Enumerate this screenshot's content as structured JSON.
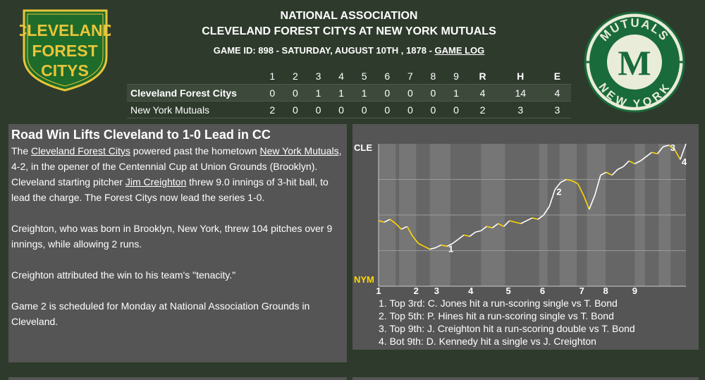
{
  "header": {
    "league": "NATIONAL ASSOCIATION",
    "matchup": "CLEVELAND FOREST CITYS AT NEW YORK MUTUALS",
    "game_info": "GAME ID: 898 - SATURDAY, AUGUST 10TH , 1878 - ",
    "game_log_link": "GAME LOG"
  },
  "logos": {
    "left": {
      "lines": [
        "CLEVELAND",
        "FOREST",
        "CITYS"
      ],
      "bg": "#1f6b2a",
      "accent": "#e8c53a"
    },
    "right": {
      "top_text": "MUTUALS",
      "bottom_text": "NEW YORK",
      "letter": "M",
      "bg": "#e9ecd9",
      "accent": "#1a6b3b"
    }
  },
  "linescore": {
    "innings": [
      "1",
      "2",
      "3",
      "4",
      "5",
      "6",
      "7",
      "8",
      "9"
    ],
    "totals_headers": [
      "R",
      "H",
      "E"
    ],
    "teams": [
      {
        "name": "Cleveland Forest Citys",
        "innings": [
          "0",
          "0",
          "1",
          "1",
          "1",
          "0",
          "0",
          "0",
          "1"
        ],
        "totals": [
          "4",
          "14",
          "4"
        ]
      },
      {
        "name": "New York Mutuals",
        "innings": [
          "2",
          "0",
          "0",
          "0",
          "0",
          "0",
          "0",
          "0",
          "0"
        ],
        "totals": [
          "2",
          "3",
          "3"
        ]
      }
    ]
  },
  "story": {
    "headline": "Road Win Lifts Cleveland to 1-0 Lead in CC",
    "p1": {
      "t1": "The ",
      "link1": "Cleveland Forest Citys",
      "t2": " powered past the hometown ",
      "link2": "New York Mutuals",
      "t3": ", 4-2, in the opener of the Centennial Cup at Union Grounds (Brooklyn). Cleveland starting pitcher ",
      "link3": "Jim Creighton",
      "t4": " threw 9.0 innings of 3-hit ball, to lead the charge. The Forest Citys now lead the series 1-0."
    },
    "p2": "Creighton, who was born in Brooklyn, New York, threw 104 pitches over 9 innings, while allowing 2 runs.",
    "p3": "Creighton attributed the win to his team's \"tenacity.\"",
    "p4": "Game 2 is scheduled for Monday at National Association Grounds in Cleveland."
  },
  "win_probability": {
    "top_label": "CLE",
    "bottom_label": "NYM",
    "inning_labels": [
      "1",
      "2",
      "3",
      "4",
      "5",
      "6",
      "7",
      "8",
      "9"
    ],
    "plays": [
      "1. Top 3rd: C. Jones hit a run-scoring single vs T. Bond",
      "2. Top 5th: P. Hines hit a run-scoring single vs T. Bond",
      "3. Top 9th: J. Creighton hit a run-scoring double vs T. Bond",
      "4. Bot 9th: D. Kennedy hit a single vs J. Creighton"
    ],
    "marker_labels": [
      "1",
      "2",
      "3",
      "4"
    ],
    "cle_color": "#ffffff",
    "nym_color": "#ffd700",
    "series": [
      0.46,
      0.45,
      0.47,
      0.44,
      0.4,
      0.42,
      0.35,
      0.3,
      0.28,
      0.26,
      0.27,
      0.29,
      0.28,
      0.3,
      0.33,
      0.36,
      0.35,
      0.38,
      0.39,
      0.42,
      0.41,
      0.44,
      0.42,
      0.46,
      0.45,
      0.44,
      0.46,
      0.48,
      0.47,
      0.5,
      0.56,
      0.68,
      0.73,
      0.75,
      0.74,
      0.72,
      0.64,
      0.54,
      0.64,
      0.78,
      0.8,
      0.78,
      0.82,
      0.84,
      0.88,
      0.86,
      0.88,
      0.91,
      0.94,
      0.93,
      0.98,
      0.99,
      0.96,
      0.89,
      1.0
    ]
  }
}
